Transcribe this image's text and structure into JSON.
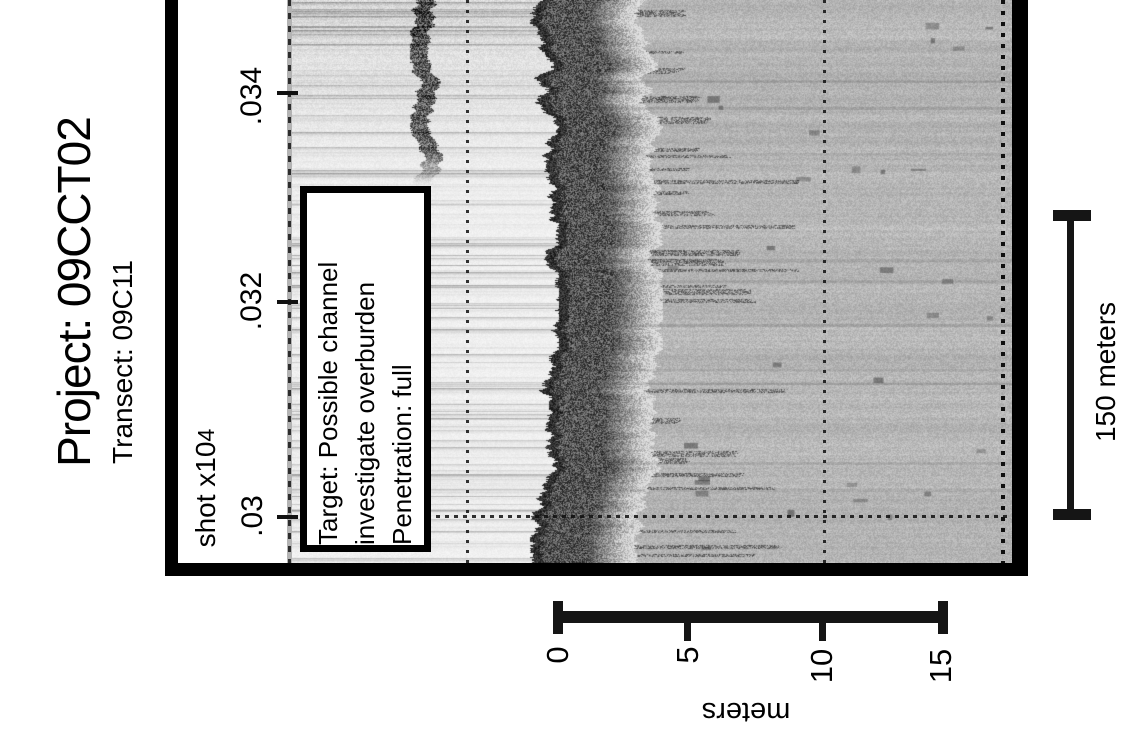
{
  "header": {
    "title": "Project: 09CCT02",
    "subtitle": "Transect: 09C11"
  },
  "shot_axis": {
    "label": "shot x10",
    "exponent": "4",
    "ticks": [
      ".03",
      ".032",
      ".034"
    ]
  },
  "depth_axis": {
    "label": "meters",
    "ticks": [
      "0",
      "5",
      "10",
      "15"
    ]
  },
  "scale_bar": {
    "label": "150 meters"
  },
  "annotation_box": {
    "line1": "Target: Possible channel",
    "line2": "investigate overburden",
    "line3": "Penetration: full"
  },
  "chart_data": {
    "type": "heatmap",
    "title": "Project: 09CCT02",
    "subtitle": "Transect: 09C11",
    "orientation": "portrait seismic profile displayed rotated 90 degrees clockwise",
    "shot_axis": {
      "label": "shot x10^4",
      "ticks": [
        0.03,
        0.032,
        0.034
      ],
      "approx_range": [
        0.0296,
        0.0349
      ],
      "gridline_at_tick": 0.03
    },
    "depth_axis": {
      "label": "meters",
      "ticks": [
        0,
        5,
        10,
        15
      ],
      "approx_range": [
        -10,
        17.5
      ]
    },
    "scale_bar_meters": 150,
    "annotations": [
      "Target: Possible channel",
      "investigate overburden",
      "Penetration: full"
    ],
    "features": [
      "white water column band above seafloor",
      "strong dark continuous seafloor reflector near 0 m",
      "diffuse gray sub-bottom returns extending past 15 m (full penetration)",
      "dotted gridlines across panel and dotted panel edge"
    ],
    "colors": {
      "ink": "#151515",
      "panel_base_gray": "#c6c6c6",
      "reflector": "#111111"
    }
  }
}
